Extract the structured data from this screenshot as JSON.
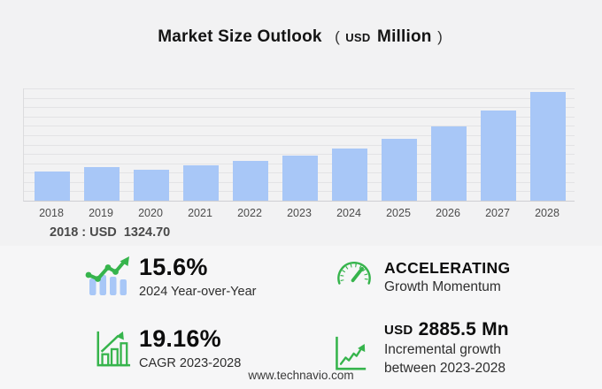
{
  "colors": {
    "background": "#f2f2f3",
    "panel_background": "#f6f6f7",
    "bar_fill": "#a8c7f7",
    "gridline": "#e3e3e5",
    "axis_line": "#cfcfd2",
    "accent_green": "#36b44c",
    "title_text": "#141414",
    "muted_text": "#4c4c4c"
  },
  "title": {
    "main": "Market Size Outlook",
    "open_paren": "(",
    "unit_small": "USD",
    "unit_large": "Million",
    "close_paren": ")"
  },
  "chart_data": {
    "type": "bar",
    "title": "Market Size Outlook (USD Million)",
    "unit": "USD Million",
    "categories": [
      "2018",
      "2019",
      "2020",
      "2021",
      "2022",
      "2023",
      "2024",
      "2025",
      "2026",
      "2027",
      "2028"
    ],
    "values": [
      1324.7,
      1525,
      1405,
      1605,
      1805,
      2056,
      2377,
      2810,
      3370,
      4095,
      4942
    ],
    "labeled_point": {
      "category": "2018",
      "value": 1324.7
    },
    "xlabel": "",
    "ylabel": "",
    "ylim": [
      0,
      5100
    ],
    "grid": true,
    "gridline_count": 12,
    "legend": "none",
    "bar_color": "#a8c7f7"
  },
  "annotation": {
    "text": "2018 : USD  1324.70"
  },
  "stats": [
    {
      "icon": "trend-line-over-bars-icon",
      "value": "15.6%",
      "label": "2024 Year-over-Year"
    },
    {
      "icon": "speedometer-icon",
      "value": "ACCELERATING",
      "label": "Growth Momentum"
    },
    {
      "icon": "bar-chart-growth-arrow-icon",
      "value": "19.16%",
      "label": "CAGR 2023-2028"
    },
    {
      "icon": "line-graph-axes-icon",
      "value_prefix": "USD",
      "value": "2885.5 Mn",
      "label_line1": "Incremental growth",
      "label_line2": "between 2023-2028"
    }
  ],
  "footer": {
    "website": "www.technavio.com"
  }
}
